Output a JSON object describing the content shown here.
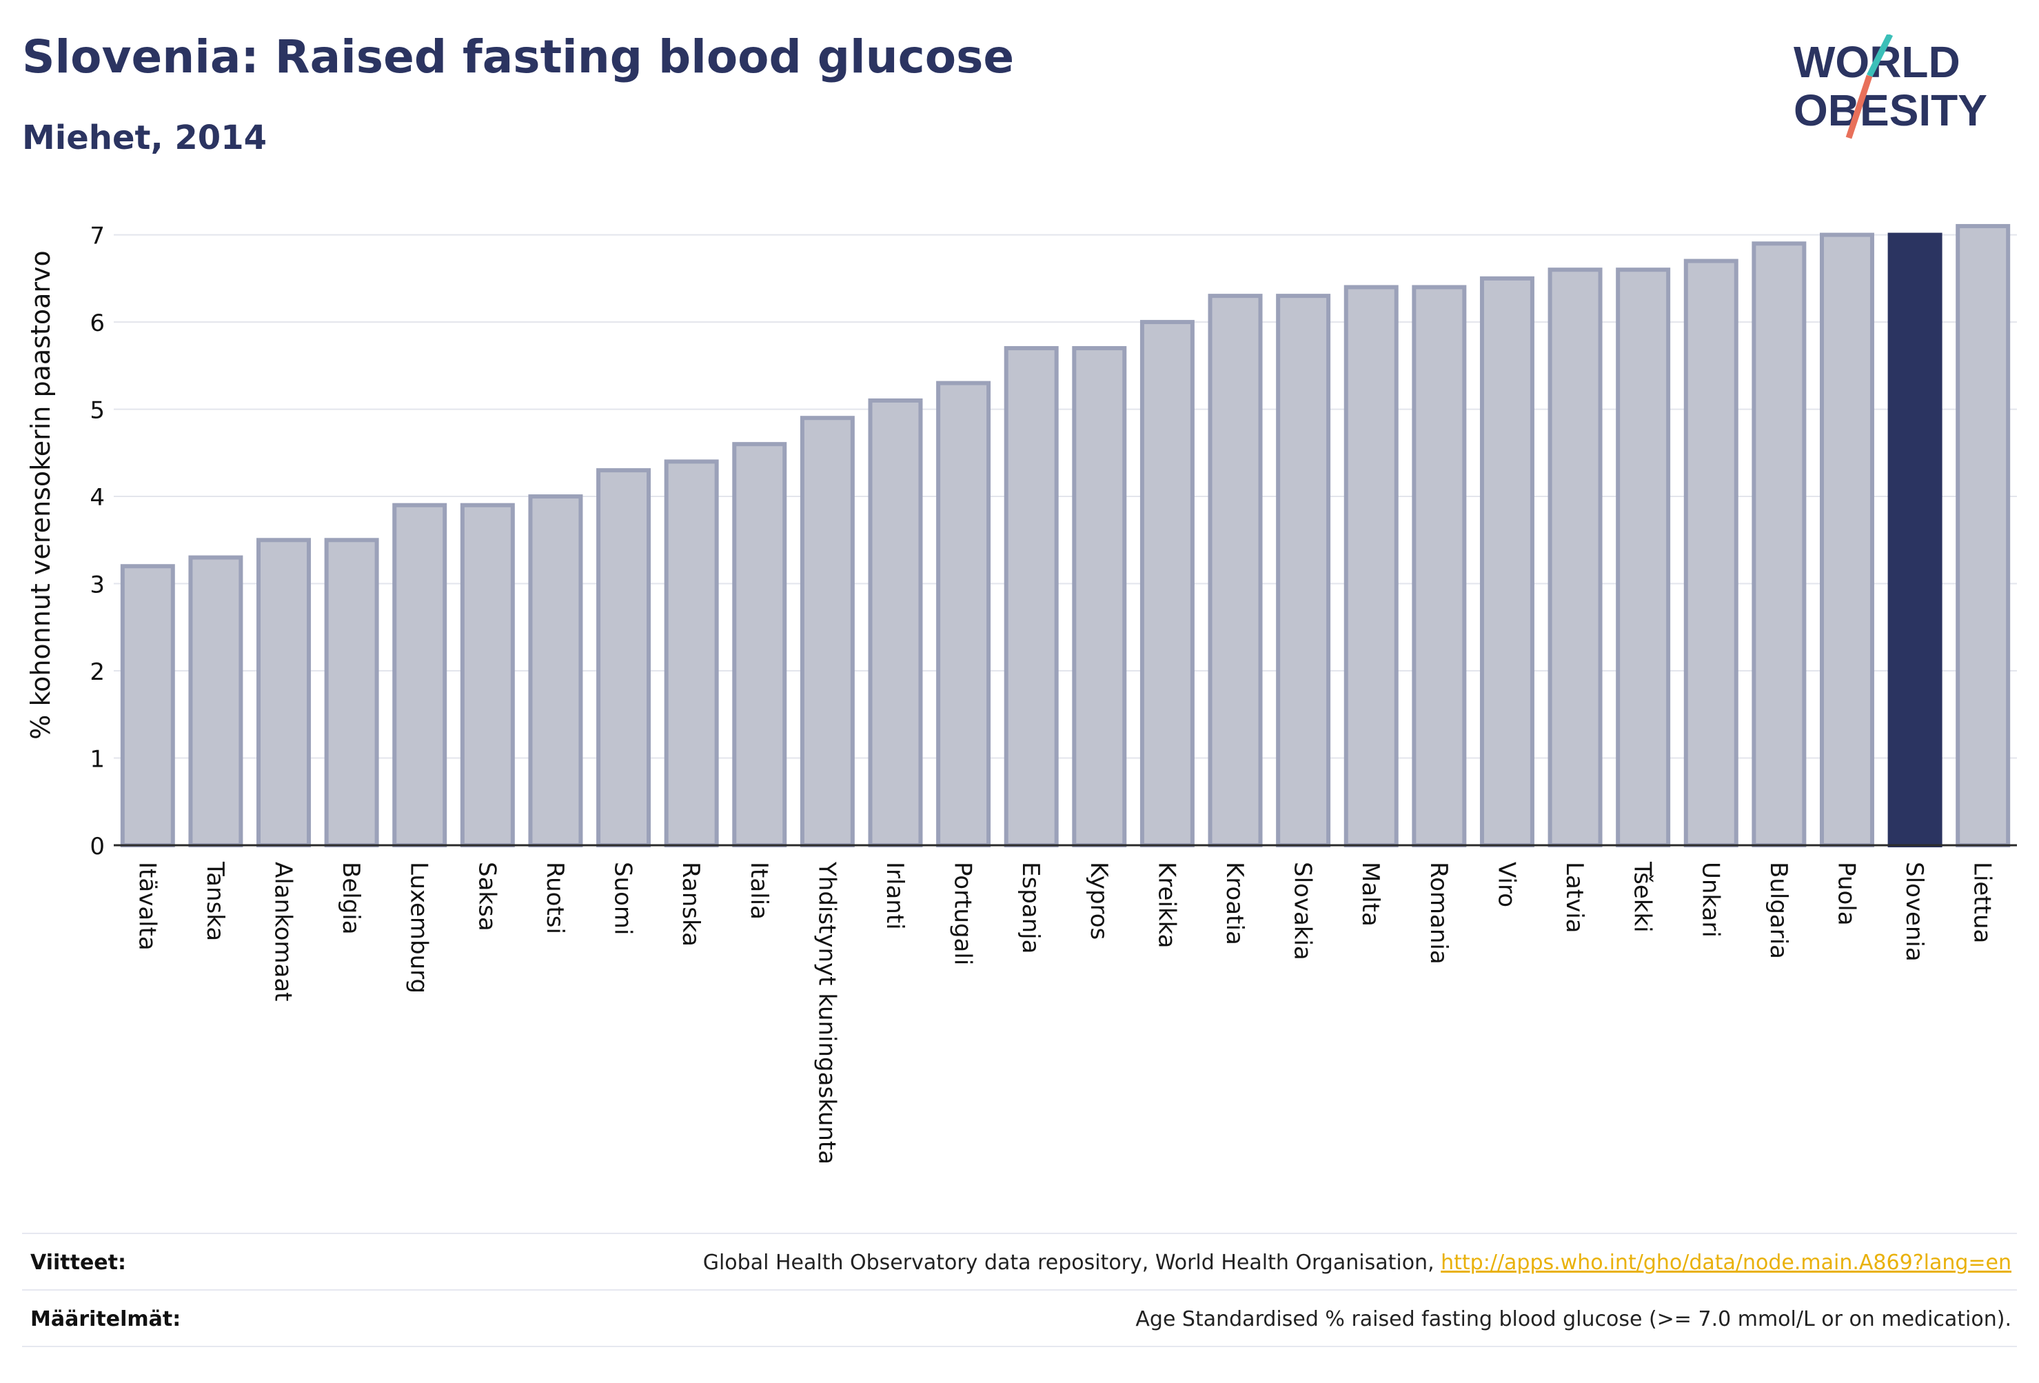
{
  "header": {
    "title": "Slovenia: Raised fasting blood glucose",
    "subtitle": "Miehet, 2014"
  },
  "logo": {
    "line1": "WORLD",
    "line2": "OBESITY",
    "colors": {
      "text": "#2b3461",
      "slash_top": "#3bbfb8",
      "slash_bottom": "#e8705a"
    }
  },
  "chart_data": {
    "type": "bar",
    "title": "Slovenia: Raised fasting blood glucose",
    "subtitle": "Miehet, 2014",
    "ylabel": "% kohonnut verensokerin paastoarvo",
    "xlabel": "",
    "ylim": [
      0,
      7.4
    ],
    "yticks": [
      0,
      1,
      2,
      3,
      4,
      5,
      6,
      7
    ],
    "grid": true,
    "highlight": "Slovenia",
    "colors": {
      "bar": "#c0c3cf",
      "bar_edge": "#9ba1b9",
      "highlight": "#2b3461",
      "grid": "#e3e5ec"
    },
    "categories": [
      "Itävalta",
      "Tanska",
      "Alankomaat",
      "Belgia",
      "Luxemburg",
      "Saksa",
      "Ruotsi",
      "Suomi",
      "Ranska",
      "Italia",
      "Yhdistynyt kuningaskunta",
      "Irlanti",
      "Portugali",
      "Espanja",
      "Kypros",
      "Kreikka",
      "Kroatia",
      "Slovakia",
      "Malta",
      "Romania",
      "Viro",
      "Latvia",
      "Tšekki",
      "Unkari",
      "Bulgaria",
      "Puola",
      "Slovenia",
      "Liettua"
    ],
    "values": [
      3.2,
      3.3,
      3.5,
      3.5,
      3.9,
      3.9,
      4.0,
      4.3,
      4.4,
      4.6,
      4.9,
      5.1,
      5.3,
      5.7,
      5.7,
      6.0,
      6.3,
      6.3,
      6.4,
      6.4,
      6.5,
      6.6,
      6.6,
      6.7,
      6.9,
      7.0,
      7.0,
      7.1
    ]
  },
  "footer": {
    "references_label": "Viitteet:",
    "references_text": "Global Health Observatory data repository, World Health Organisation, ",
    "references_link": "http://apps.who.int/gho/data/node.main.A869?lang=en",
    "definitions_label": "Määritelmät:",
    "definitions_text": "Age Standardised % raised fasting blood glucose (>= 7.0 mmol/L or on medication)."
  }
}
